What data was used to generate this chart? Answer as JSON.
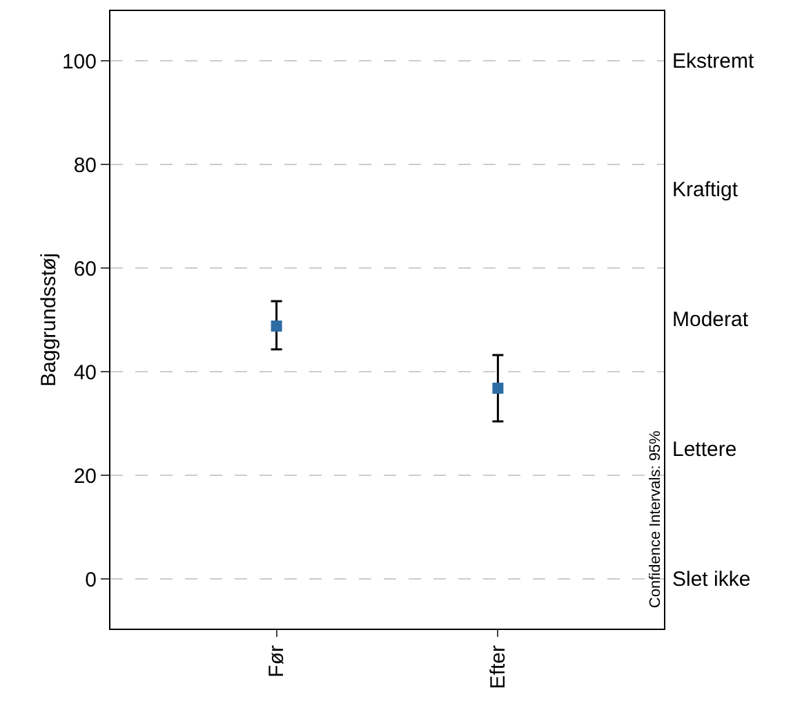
{
  "chart_data": {
    "type": "scatter",
    "ylabel": "Baggrundsstøj",
    "categories": [
      "Før",
      "Efter"
    ],
    "values": [
      48.8,
      36.8
    ],
    "errors": [
      [
        44.3,
        53.6
      ],
      [
        30.4,
        43.2
      ]
    ],
    "color": "#2e6da4",
    "marker": "square",
    "grid": "y",
    "ylim": [
      -9.6,
      109.6
    ],
    "yticks": [
      0,
      20,
      40,
      60,
      80,
      100
    ],
    "annotations": [
      "Ekstremt",
      "Kraftigt",
      "Moderat",
      "Lettere",
      "Slet ikke",
      "Confidence Intervals: 95%"
    ]
  }
}
